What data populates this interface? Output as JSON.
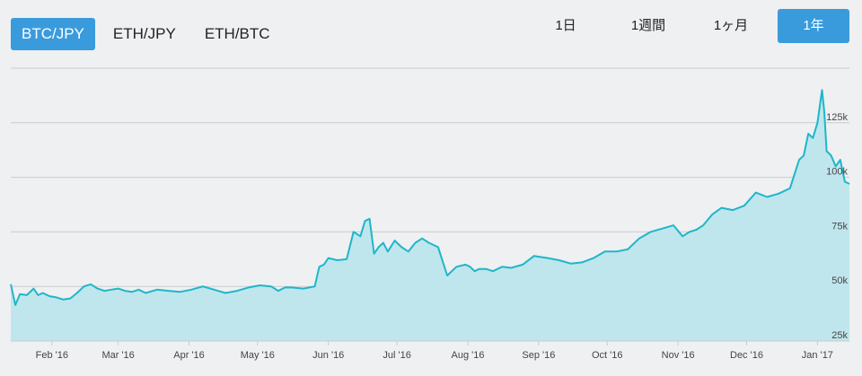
{
  "pairs": {
    "tabs": [
      {
        "label": "BTC/JPY",
        "active": true
      },
      {
        "label": "ETH/JPY",
        "active": false
      },
      {
        "label": "ETH/BTC",
        "active": false
      }
    ]
  },
  "ranges": {
    "tabs": [
      {
        "label": "1日",
        "active": false
      },
      {
        "label": "1週間",
        "active": false
      },
      {
        "label": "1ヶ月",
        "active": false
      },
      {
        "label": "1年",
        "active": true
      }
    ]
  },
  "colors": {
    "accent": "#3a9bdc",
    "line": "#1fb6c9",
    "fill": "#bfe6ec",
    "grid": "#c9ccd0"
  },
  "chart_data": {
    "type": "area",
    "x_ticks": [
      "Feb '16",
      "Mar '16",
      "Apr '16",
      "May '16",
      "Jun '16",
      "Jul '16",
      "Aug '16",
      "Sep '16",
      "Oct '16",
      "Nov '16",
      "Dec '16",
      "Jan '17"
    ],
    "y_ticks": [
      "25k",
      "50k",
      "75k",
      "100k",
      "125k"
    ],
    "ylim": [
      25000,
      150000
    ],
    "xlim": [
      "2016-01-14",
      "2017-01-15"
    ],
    "series": [
      {
        "x": [
          "2016-01-14",
          "2016-01-16",
          "2016-01-18",
          "2016-01-21",
          "2016-01-24",
          "2016-01-26",
          "2016-01-28",
          "2016-01-31",
          "2016-02-03",
          "2016-02-06",
          "2016-02-09",
          "2016-02-12",
          "2016-02-15",
          "2016-02-18",
          "2016-02-21",
          "2016-02-24",
          "2016-02-27",
          "2016-03-01",
          "2016-03-04",
          "2016-03-07",
          "2016-03-10",
          "2016-03-13",
          "2016-03-18",
          "2016-03-23",
          "2016-03-28",
          "2016-04-02",
          "2016-04-07",
          "2016-04-12",
          "2016-04-17",
          "2016-04-22",
          "2016-04-27",
          "2016-05-02",
          "2016-05-07",
          "2016-05-10",
          "2016-05-13",
          "2016-05-16",
          "2016-05-21",
          "2016-05-26",
          "2016-05-28",
          "2016-05-30",
          "2016-06-01",
          "2016-06-05",
          "2016-06-09",
          "2016-06-12",
          "2016-06-15",
          "2016-06-17",
          "2016-06-19",
          "2016-06-21",
          "2016-06-23",
          "2016-06-25",
          "2016-06-27",
          "2016-06-30",
          "2016-07-03",
          "2016-07-06",
          "2016-07-09",
          "2016-07-12",
          "2016-07-15",
          "2016-07-19",
          "2016-07-23",
          "2016-07-27",
          "2016-07-31",
          "2016-08-02",
          "2016-08-04",
          "2016-08-06",
          "2016-08-09",
          "2016-08-12",
          "2016-08-16",
          "2016-08-20",
          "2016-08-25",
          "2016-08-30",
          "2016-09-05",
          "2016-09-10",
          "2016-09-15",
          "2016-09-20",
          "2016-09-25",
          "2016-09-30",
          "2016-10-05",
          "2016-10-10",
          "2016-10-15",
          "2016-10-20",
          "2016-10-25",
          "2016-10-30",
          "2016-11-03",
          "2016-11-06",
          "2016-11-09",
          "2016-11-12",
          "2016-11-16",
          "2016-11-20",
          "2016-11-25",
          "2016-11-30",
          "2016-12-05",
          "2016-12-10",
          "2016-12-15",
          "2016-12-20",
          "2016-12-24",
          "2016-12-26",
          "2016-12-28",
          "2016-12-30",
          "2017-01-01",
          "2017-01-03",
          "2017-01-04",
          "2017-01-05",
          "2017-01-07",
          "2017-01-09",
          "2017-01-11",
          "2017-01-13",
          "2017-01-15"
        ],
        "y": [
          51000,
          41500,
          46500,
          46000,
          49000,
          46000,
          47000,
          45500,
          45000,
          44000,
          44500,
          47000,
          50000,
          51000,
          49000,
          48000,
          48500,
          49000,
          48000,
          47500,
          48500,
          47000,
          48500,
          48000,
          47500,
          48500,
          50000,
          48500,
          47000,
          48000,
          49500,
          50500,
          50000,
          48000,
          49500,
          49500,
          49000,
          50000,
          59000,
          60000,
          63000,
          62000,
          62500,
          75000,
          73000,
          80000,
          81000,
          65000,
          68000,
          70000,
          66000,
          71000,
          68000,
          66000,
          70000,
          72000,
          70000,
          68000,
          55000,
          59000,
          60000,
          59000,
          57000,
          58000,
          58000,
          57000,
          59000,
          58500,
          60000,
          64000,
          63000,
          62000,
          60500,
          61000,
          63000,
          66000,
          66000,
          67000,
          72000,
          75000,
          76500,
          78000,
          73000,
          75000,
          76000,
          78000,
          83000,
          86000,
          85000,
          87000,
          93000,
          91000,
          92500,
          95000,
          108000,
          110000,
          120000,
          118000,
          125000,
          140000,
          130000,
          112000,
          110000,
          105000,
          108000,
          98000,
          97000
        ]
      }
    ]
  }
}
